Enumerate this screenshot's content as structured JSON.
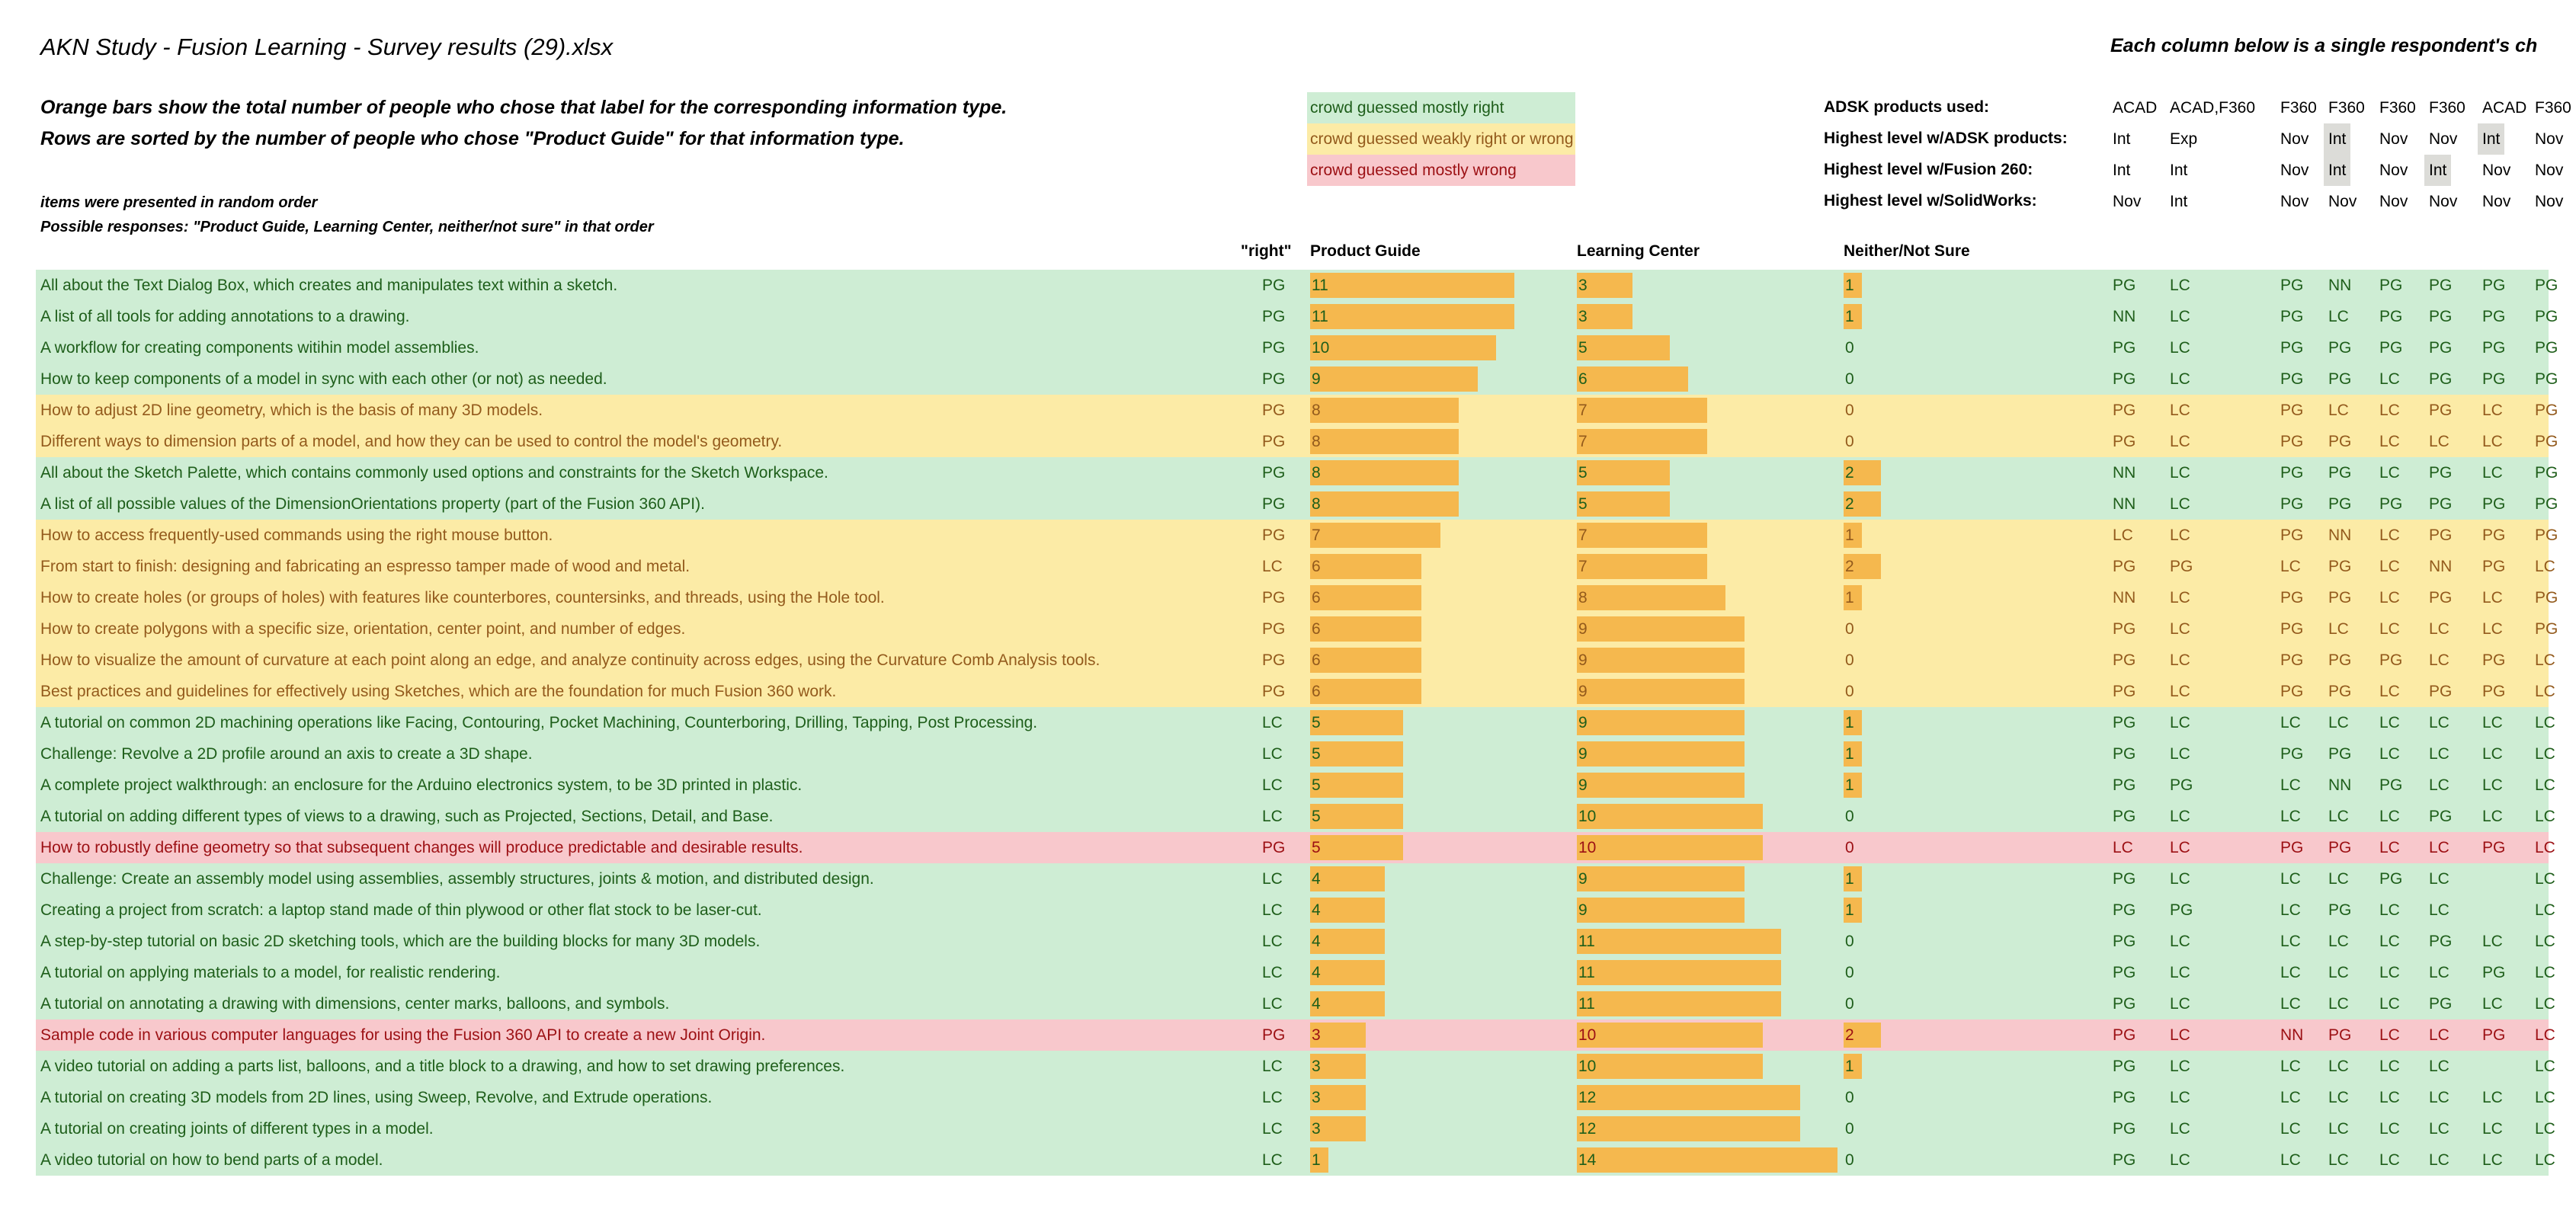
{
  "title": "AKN Study - Fusion Learning - Survey results (29).xlsx",
  "notes": {
    "line1": "Orange bars show the total number of people who chose that label for the corresponding information type.",
    "line2": "Rows are sorted by the number of people who chose \"Product Guide\" for that information type.",
    "line3": "items were presented in random order",
    "line4": "Possible responses: \"Product Guide, Learning Center, neither/not sure\" in that order"
  },
  "legend": {
    "green": "crowd guessed mostly right",
    "yellow": "crowd guessed weakly right or wrong",
    "red": "crowd guessed mostly wrong"
  },
  "respondents_heading": "Each column below is a single respondent's ch",
  "respondent_info": [
    {
      "label": "ADSK products used:",
      "values": [
        "ACAD",
        "ACAD,F360",
        "F360",
        "F360",
        "F360",
        "F360",
        "ACAD",
        "F360"
      ],
      "highlight": [
        false,
        false,
        false,
        false,
        false,
        false,
        false,
        false
      ]
    },
    {
      "label": "Highest level w/ADSK products:",
      "values": [
        "Int",
        "Exp",
        "Nov",
        "Int",
        "Nov",
        "Nov",
        "Int",
        "Nov"
      ],
      "highlight": [
        false,
        false,
        false,
        true,
        false,
        false,
        true,
        false
      ]
    },
    {
      "label": "Highest level w/Fusion 260:",
      "values": [
        "Int",
        "Int",
        "Nov",
        "Int",
        "Nov",
        "Int",
        "Nov",
        "Nov"
      ],
      "highlight": [
        false,
        false,
        false,
        true,
        false,
        true,
        false,
        false
      ]
    },
    {
      "label": "Highest level w/SolidWorks:",
      "values": [
        "Nov",
        "Int",
        "Nov",
        "Nov",
        "Nov",
        "Nov",
        "Nov",
        "Nov"
      ],
      "highlight": [
        false,
        false,
        false,
        false,
        false,
        false,
        false,
        false
      ]
    }
  ],
  "headers": {
    "right": "\"right\"",
    "pg": "Product Guide",
    "lc": "Learning Center",
    "nn": "Neither/Not Sure"
  },
  "colors": {
    "green_bg": "#ceedd4",
    "yellow_bg": "#fceba6",
    "red_bg": "#f8c8cc",
    "bar": "#f5b84e",
    "highlight": "#dcdcd8"
  },
  "rows": [
    {
      "text": "All about the Text Dialog Box, which creates and manipulates text within a sketch.",
      "right": "PG",
      "pg": 11,
      "lc": 3,
      "nn": 1,
      "cat": "green",
      "resp": [
        "PG",
        "LC",
        "PG",
        "NN",
        "PG",
        "PG",
        "PG",
        "PG"
      ]
    },
    {
      "text": "A list of all tools for adding annotations to a drawing.",
      "right": "PG",
      "pg": 11,
      "lc": 3,
      "nn": 1,
      "cat": "green",
      "resp": [
        "NN",
        "LC",
        "PG",
        "LC",
        "PG",
        "PG",
        "PG",
        "PG"
      ]
    },
    {
      "text": "A workflow for creating components witihin model assemblies.",
      "right": "PG",
      "pg": 10,
      "lc": 5,
      "nn": 0,
      "cat": "green",
      "resp": [
        "PG",
        "LC",
        "PG",
        "PG",
        "PG",
        "PG",
        "PG",
        "PG"
      ]
    },
    {
      "text": "How to keep components of a model in sync with each other (or not) as needed.",
      "right": "PG",
      "pg": 9,
      "lc": 6,
      "nn": 0,
      "cat": "green",
      "resp": [
        "PG",
        "LC",
        "PG",
        "PG",
        "LC",
        "PG",
        "PG",
        "PG"
      ]
    },
    {
      "text": "How to adjust 2D line geometry, which is the basis of many 3D models.",
      "right": "PG",
      "pg": 8,
      "lc": 7,
      "nn": 0,
      "cat": "yellow",
      "resp": [
        "PG",
        "LC",
        "PG",
        "LC",
        "LC",
        "PG",
        "LC",
        "PG"
      ]
    },
    {
      "text": "Different ways to dimension parts of a model, and how they can be used to control the model's geometry.",
      "right": "PG",
      "pg": 8,
      "lc": 7,
      "nn": 0,
      "cat": "yellow",
      "resp": [
        "PG",
        "LC",
        "PG",
        "PG",
        "LC",
        "LC",
        "LC",
        "PG"
      ]
    },
    {
      "text": "All about the Sketch Palette, which contains commonly used options and constraints for the Sketch Workspace.",
      "right": "PG",
      "pg": 8,
      "lc": 5,
      "nn": 2,
      "cat": "green",
      "resp": [
        "NN",
        "LC",
        "PG",
        "PG",
        "LC",
        "PG",
        "LC",
        "PG"
      ]
    },
    {
      "text": "A list of all possible values of the DimensionOrientations property (part of the Fusion 360 API).",
      "right": "PG",
      "pg": 8,
      "lc": 5,
      "nn": 2,
      "cat": "green",
      "resp": [
        "NN",
        "LC",
        "PG",
        "PG",
        "PG",
        "PG",
        "PG",
        "PG"
      ]
    },
    {
      "text": "How to access frequently-used commands using the right mouse button.",
      "right": "PG",
      "pg": 7,
      "lc": 7,
      "nn": 1,
      "cat": "yellow",
      "resp": [
        "LC",
        "LC",
        "PG",
        "NN",
        "LC",
        "PG",
        "PG",
        "PG"
      ]
    },
    {
      "text": "From start to finish: designing and fabricating an espresso tamper made of wood and metal.",
      "right": "LC",
      "pg": 6,
      "lc": 7,
      "nn": 2,
      "cat": "yellow",
      "resp": [
        "PG",
        "PG",
        "LC",
        "PG",
        "LC",
        "NN",
        "PG",
        "LC"
      ]
    },
    {
      "text": "How to create holes (or groups of holes) with features like counterbores, countersinks, and threads, using the Hole tool.",
      "right": "PG",
      "pg": 6,
      "lc": 8,
      "nn": 1,
      "cat": "yellow",
      "resp": [
        "NN",
        "LC",
        "PG",
        "PG",
        "LC",
        "PG",
        "LC",
        "PG"
      ]
    },
    {
      "text": "How to create polygons with a specific size, orientation, center point, and number of edges.",
      "right": "PG",
      "pg": 6,
      "lc": 9,
      "nn": 0,
      "cat": "yellow",
      "resp": [
        "PG",
        "LC",
        "PG",
        "LC",
        "LC",
        "LC",
        "LC",
        "PG"
      ]
    },
    {
      "text": "How to visualize the amount of curvature at each point along an edge, and analyze continuity across edges, using the Curvature Comb Analysis tools.",
      "right": "PG",
      "pg": 6,
      "lc": 9,
      "nn": 0,
      "cat": "yellow",
      "resp": [
        "PG",
        "LC",
        "PG",
        "PG",
        "PG",
        "LC",
        "PG",
        "LC"
      ]
    },
    {
      "text": "Best practices and guidelines for effectively using Sketches, which are the foundation for much Fusion 360 work.",
      "right": "PG",
      "pg": 6,
      "lc": 9,
      "nn": 0,
      "cat": "yellow",
      "resp": [
        "PG",
        "LC",
        "PG",
        "PG",
        "LC",
        "PG",
        "PG",
        "LC"
      ]
    },
    {
      "text": "A tutorial on common 2D machining operations like Facing, Contouring, Pocket Machining, Counterboring, Drilling, Tapping, Post Processing.",
      "right": "LC",
      "pg": 5,
      "lc": 9,
      "nn": 1,
      "cat": "green",
      "resp": [
        "PG",
        "LC",
        "LC",
        "LC",
        "LC",
        "LC",
        "LC",
        "LC"
      ]
    },
    {
      "text": "Challenge: Revolve a 2D profile around an axis to create a 3D shape.",
      "right": "LC",
      "pg": 5,
      "lc": 9,
      "nn": 1,
      "cat": "green",
      "resp": [
        "PG",
        "LC",
        "PG",
        "PG",
        "LC",
        "LC",
        "LC",
        "LC"
      ]
    },
    {
      "text": "A complete project walkthrough: an enclosure for the Arduino electronics system, to be 3D printed in plastic.",
      "right": "LC",
      "pg": 5,
      "lc": 9,
      "nn": 1,
      "cat": "green",
      "resp": [
        "PG",
        "PG",
        "LC",
        "NN",
        "PG",
        "LC",
        "LC",
        "LC"
      ]
    },
    {
      "text": "A tutorial on adding different types of views to a drawing, such as Projected, Sections, Detail, and Base.",
      "right": "LC",
      "pg": 5,
      "lc": 10,
      "nn": 0,
      "cat": "green",
      "resp": [
        "PG",
        "LC",
        "LC",
        "LC",
        "LC",
        "PG",
        "LC",
        "LC"
      ]
    },
    {
      "text": "How to robustly define geometry so that subsequent changes will produce predictable and desirable results.",
      "right": "PG",
      "pg": 5,
      "lc": 10,
      "nn": 0,
      "cat": "red",
      "resp": [
        "LC",
        "LC",
        "PG",
        "PG",
        "LC",
        "LC",
        "PG",
        "LC"
      ]
    },
    {
      "text": "Challenge: Create an assembly model using assemblies, assembly structures, joints & motion, and distributed design.",
      "right": "LC",
      "pg": 4,
      "lc": 9,
      "nn": 1,
      "cat": "green",
      "resp": [
        "PG",
        "LC",
        "LC",
        "LC",
        "PG",
        "LC",
        "",
        "LC"
      ]
    },
    {
      "text": "Creating a project from scratch: a laptop stand made of thin plywood or other flat stock to be laser-cut.",
      "right": "LC",
      "pg": 4,
      "lc": 9,
      "nn": 1,
      "cat": "green",
      "resp": [
        "PG",
        "PG",
        "LC",
        "PG",
        "LC",
        "LC",
        "",
        "LC"
      ]
    },
    {
      "text": "A step-by-step tutorial on basic 2D sketching tools, which are the building blocks for many 3D models.",
      "right": "LC",
      "pg": 4,
      "lc": 11,
      "nn": 0,
      "cat": "green",
      "resp": [
        "PG",
        "LC",
        "LC",
        "LC",
        "LC",
        "PG",
        "LC",
        "LC"
      ]
    },
    {
      "text": "A tutorial on applying materials to a model, for realistic rendering.",
      "right": "LC",
      "pg": 4,
      "lc": 11,
      "nn": 0,
      "cat": "green",
      "resp": [
        "PG",
        "LC",
        "LC",
        "LC",
        "LC",
        "LC",
        "PG",
        "LC"
      ]
    },
    {
      "text": "A tutorial on annotating a drawing with dimensions, center marks, balloons, and symbols.",
      "right": "LC",
      "pg": 4,
      "lc": 11,
      "nn": 0,
      "cat": "green",
      "resp": [
        "PG",
        "LC",
        "LC",
        "LC",
        "LC",
        "PG",
        "LC",
        "LC"
      ]
    },
    {
      "text": "Sample code in various computer languages for using the Fusion 360 API to create a new Joint Origin.",
      "right": "PG",
      "pg": 3,
      "lc": 10,
      "nn": 2,
      "cat": "red",
      "resp": [
        "PG",
        "LC",
        "NN",
        "PG",
        "LC",
        "LC",
        "PG",
        "LC"
      ]
    },
    {
      "text": "A video tutorial on adding a parts list, balloons, and a title block to a drawing, and how to set drawing preferences.",
      "right": "LC",
      "pg": 3,
      "lc": 10,
      "nn": 1,
      "cat": "green",
      "resp": [
        "PG",
        "LC",
        "LC",
        "LC",
        "LC",
        "LC",
        "",
        "LC"
      ]
    },
    {
      "text": "A tutorial on creating 3D models from 2D lines, using Sweep, Revolve, and Extrude operations.",
      "right": "LC",
      "pg": 3,
      "lc": 12,
      "nn": 0,
      "cat": "green",
      "resp": [
        "PG",
        "LC",
        "LC",
        "LC",
        "LC",
        "LC",
        "LC",
        "LC"
      ]
    },
    {
      "text": "A tutorial on creating joints of different types in a model.",
      "right": "LC",
      "pg": 3,
      "lc": 12,
      "nn": 0,
      "cat": "green",
      "resp": [
        "PG",
        "LC",
        "LC",
        "LC",
        "LC",
        "LC",
        "LC",
        "LC"
      ]
    },
    {
      "text": "A video tutorial on how to bend parts of a model.",
      "right": "LC",
      "pg": 1,
      "lc": 14,
      "nn": 0,
      "cat": "green",
      "resp": [
        "PG",
        "LC",
        "LC",
        "LC",
        "LC",
        "LC",
        "LC",
        "LC"
      ]
    }
  ]
}
